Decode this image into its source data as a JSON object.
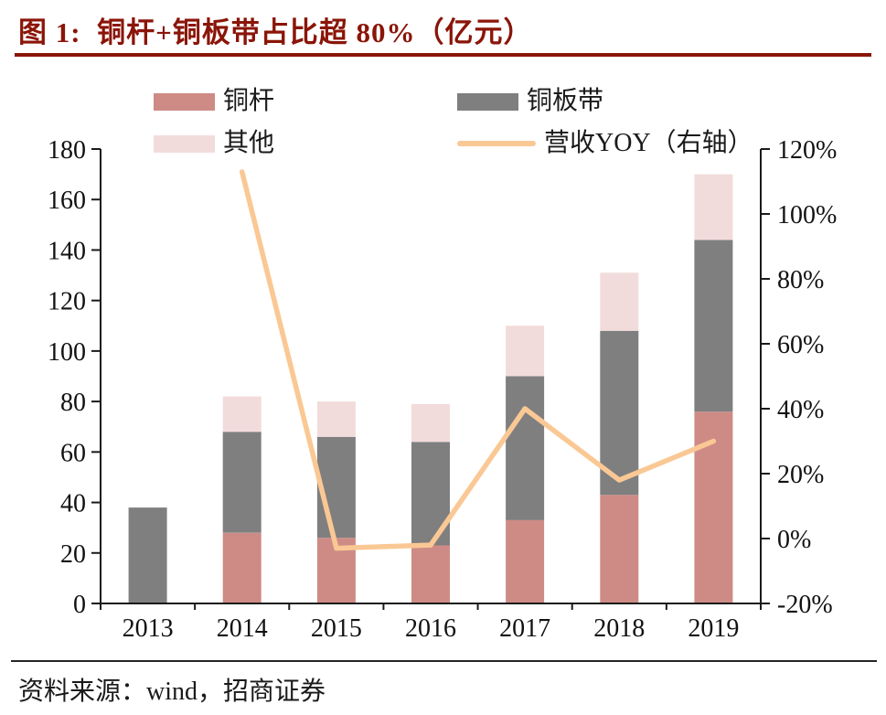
{
  "header": {
    "title": "图 1:  铜杆+铜板带占比超 80%（亿元）"
  },
  "footer": {
    "source": "资料来源：wind，招商证券"
  },
  "colors": {
    "title_accent": "#8A1508",
    "axis": "#1a1a1a",
    "copper_rod": "#CE8B86",
    "copper_strip": "#7F7F7F",
    "other": "#F2DCDB",
    "yoy_line": "#FAC894"
  },
  "legend": [
    {
      "label": "铜杆",
      "type": "box",
      "color": "#CE8B86"
    },
    {
      "label": "铜板带",
      "type": "box",
      "color": "#7F7F7F"
    },
    {
      "label": "其他",
      "type": "box",
      "color": "#F2DCDB"
    },
    {
      "label": "营收YOY（右轴）",
      "type": "line",
      "color": "#FAC894"
    }
  ],
  "chart_data": {
    "type": "bar",
    "subtype": "stacked-bars-with-line-overlay",
    "title": "图 1:  铜杆+铜板带占比超 80%（亿元）",
    "categories": [
      "2013",
      "2014",
      "2015",
      "2016",
      "2017",
      "2018",
      "2019"
    ],
    "series": [
      {
        "name": "铜杆",
        "type": "bar",
        "axis": "left",
        "color": "#CE8B86",
        "values": [
          0,
          28,
          26,
          23,
          33,
          43,
          76
        ]
      },
      {
        "name": "铜板带",
        "type": "bar",
        "axis": "left",
        "color": "#7F7F7F",
        "values": [
          38,
          40,
          40,
          41,
          57,
          65,
          68
        ]
      },
      {
        "name": "其他",
        "type": "bar",
        "axis": "left",
        "color": "#F2DCDB",
        "values": [
          0,
          14,
          14,
          15,
          20,
          23,
          26
        ]
      },
      {
        "name": "营收YOY（右轴）",
        "type": "line",
        "axis": "right",
        "color": "#FAC894",
        "values": [
          null,
          113,
          -3,
          -2,
          40,
          18,
          30
        ],
        "unit": "%"
      }
    ],
    "left_axis": {
      "min": 0,
      "max": 180,
      "step": 20,
      "ticks": [
        "180",
        "160",
        "140",
        "120",
        "100",
        "80",
        "60",
        "40",
        "20",
        "0"
      ]
    },
    "right_axis": {
      "min": -20,
      "max": 120,
      "step": 20,
      "ticks": [
        "120%",
        "100%",
        "80%",
        "60%",
        "40%",
        "20%",
        "0%",
        "-20%"
      ]
    },
    "grid": false,
    "legend_position": "top"
  }
}
